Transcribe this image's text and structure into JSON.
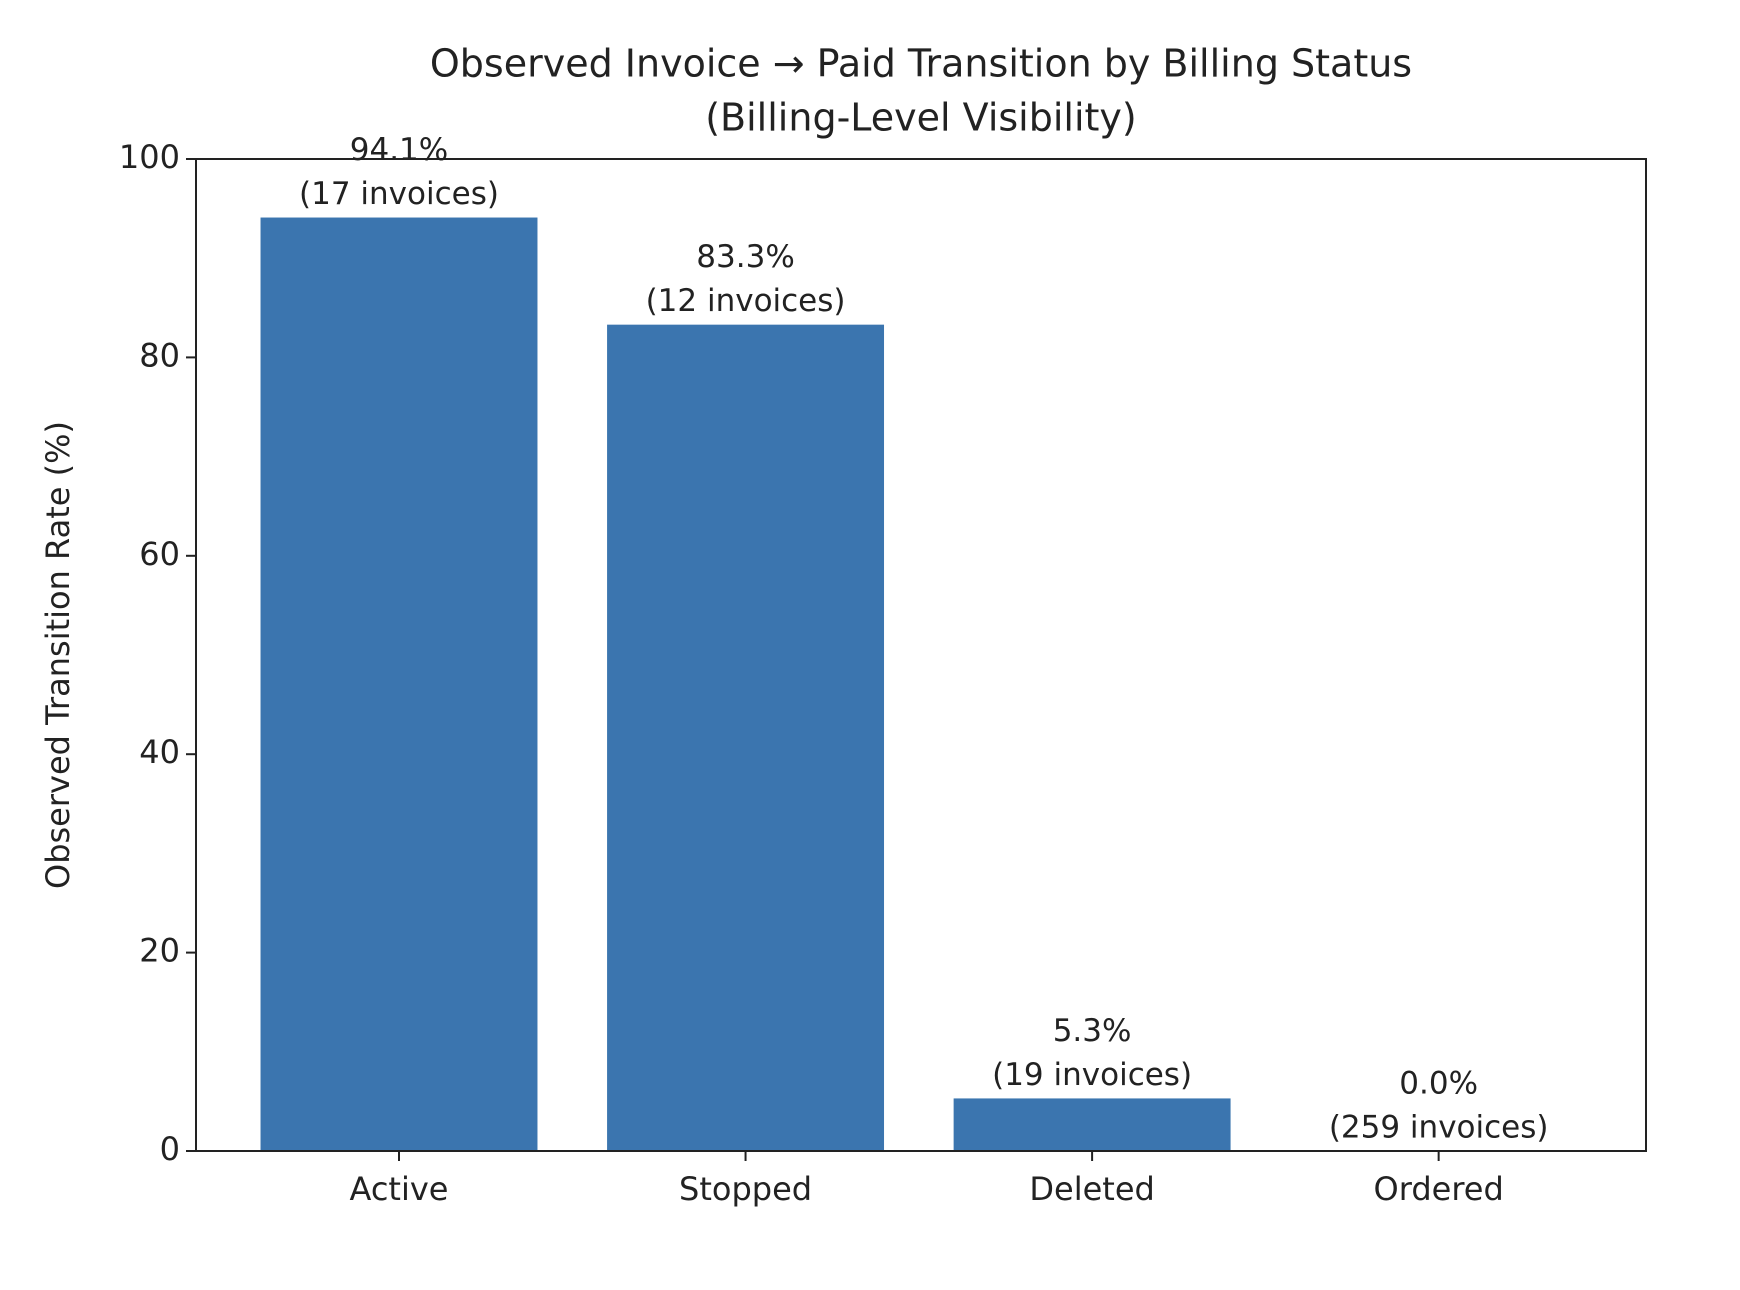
{
  "chart_data": {
    "type": "bar",
    "title": "Observed Invoice → Paid Transition by Billing Status",
    "subtitle": "(Billing-Level Visibility)",
    "y_label": "Observed Transition Rate (%)",
    "categories": [
      "Active",
      "Stopped",
      "Deleted",
      "Ordered"
    ],
    "values": [
      94.1,
      83.3,
      5.3,
      0.0
    ],
    "value_labels": [
      "94.1%",
      "83.3%",
      "5.3%",
      "0.0%"
    ],
    "count_labels": [
      "(17 invoices)",
      "(12 invoices)",
      "(19 invoices)",
      "(259 invoices)"
    ],
    "color": "#3b75af",
    "ylim": [
      0,
      100
    ],
    "yticks": [
      0,
      20,
      40,
      60,
      80,
      100
    ],
    "grid": false
  }
}
